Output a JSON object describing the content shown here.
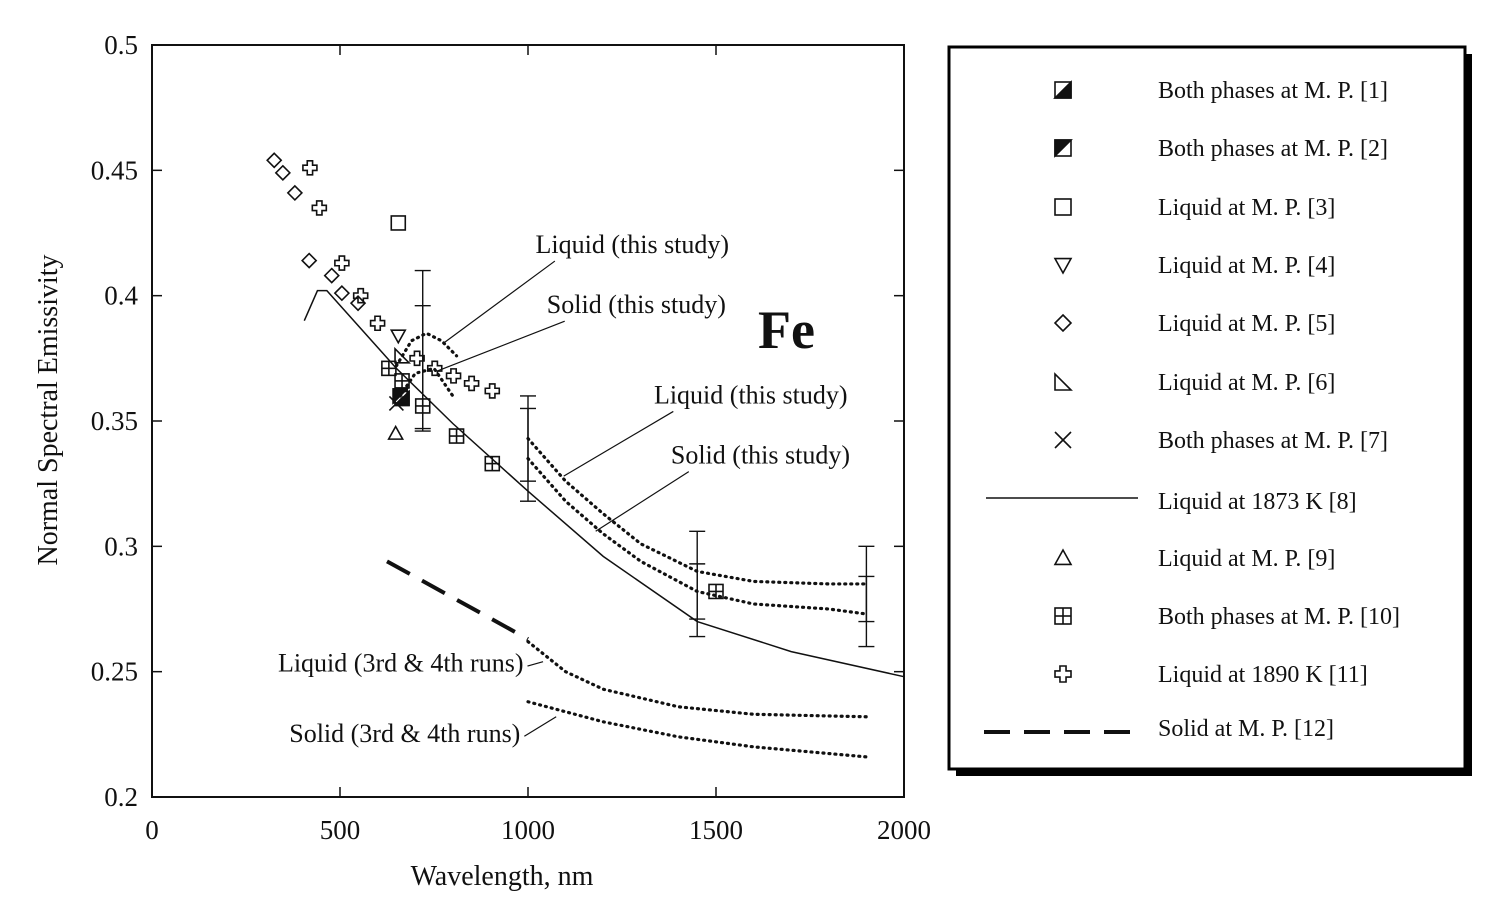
{
  "chart_data": {
    "type": "scatter",
    "element_label": "Fe",
    "xlabel": "Wavelength, nm",
    "ylabel": "Normal Spectral Emissivity",
    "xlim": [
      0,
      2000
    ],
    "ylim": [
      0.2,
      0.5
    ],
    "x_ticks": [
      "0",
      "500",
      "1000",
      "1500",
      "2000"
    ],
    "y_ticks": [
      "0.2",
      "0.25",
      "0.3",
      "0.35",
      "0.4",
      "0.45",
      "0.5"
    ],
    "legend_position": "right",
    "legend": [
      {
        "key": "m1",
        "label": "Both phases at M. P. [1]",
        "symbol": "square-half-a"
      },
      {
        "key": "m2",
        "label": "Both phases at M. P. [2]",
        "symbol": "square-half-b"
      },
      {
        "key": "m3",
        "label": "Liquid at M. P. [3]",
        "symbol": "square"
      },
      {
        "key": "m4",
        "label": "Liquid at M. P. [4]",
        "symbol": "triangle-down"
      },
      {
        "key": "m5",
        "label": "Liquid at M. P. [5]",
        "symbol": "diamond"
      },
      {
        "key": "m6",
        "label": "Liquid at M. P. [6]",
        "symbol": "right-triangle"
      },
      {
        "key": "m7",
        "label": "Both phases at M. P. [7]",
        "symbol": "x"
      },
      {
        "key": "m8",
        "label": "Liquid at 1873 K [8]",
        "symbol": "line-solid"
      },
      {
        "key": "m9",
        "label": "Liquid at M. P. [9]",
        "symbol": "triangle-up"
      },
      {
        "key": "m10",
        "label": "Both phases at M. P. [10]",
        "symbol": "square-plus"
      },
      {
        "key": "m11",
        "label": "Liquid at 1890 K [11]",
        "symbol": "plus-open"
      },
      {
        "key": "m12",
        "label": "Solid at M. P. [12]",
        "symbol": "line-dashed"
      }
    ],
    "annotations": [
      {
        "text": "Liquid (this study)",
        "x": 1020,
        "y": 0.417,
        "anchor": [
          775,
          0.381
        ]
      },
      {
        "text": "Solid (this study)",
        "x": 1050,
        "y": 0.393,
        "anchor": [
          760,
          0.37
        ]
      },
      {
        "text": "Liquid (this study)",
        "x": 1335,
        "y": 0.357,
        "anchor": [
          1095,
          0.328
        ]
      },
      {
        "text": "Solid (this study)",
        "x": 1380,
        "y": 0.333,
        "anchor": [
          1180,
          0.306
        ]
      },
      {
        "text": "Liquid (3rd & 4th runs)",
        "x": 335,
        "y": 0.25,
        "anchor": [
          1040,
          0.254
        ]
      },
      {
        "text": "Solid (3rd & 4th runs)",
        "x": 365,
        "y": 0.222,
        "anchor": [
          1075,
          0.232
        ]
      }
    ],
    "series": [
      {
        "key": "m1",
        "x": [
          665
        ],
        "y": [
          0.359
        ]
      },
      {
        "key": "m2",
        "x": [
          660
        ],
        "y": [
          0.36
        ]
      },
      {
        "key": "m3",
        "x": [
          655
        ],
        "y": [
          0.429
        ]
      },
      {
        "key": "m4",
        "x": [
          655
        ],
        "y": [
          0.384
        ]
      },
      {
        "key": "m5",
        "x": [
          325,
          348,
          380,
          418,
          478,
          505,
          548
        ],
        "y": [
          0.454,
          0.449,
          0.441,
          0.414,
          0.408,
          0.401,
          0.397
        ]
      },
      {
        "key": "m6",
        "x": [
          665
        ],
        "y": [
          0.376
        ]
      },
      {
        "key": "m7",
        "x": [
          650
        ],
        "y": [
          0.357
        ]
      },
      {
        "key": "m8",
        "x": [
          405,
          440,
          465,
          650,
          800,
          1000,
          1200,
          1450,
          1700,
          2000
        ],
        "y": [
          0.39,
          0.402,
          0.402,
          0.371,
          0.349,
          0.322,
          0.296,
          0.27,
          0.258,
          0.248
        ]
      },
      {
        "key": "m9",
        "x": [
          648
        ],
        "y": [
          0.345
        ]
      },
      {
        "key": "m10",
        "x": [
          630,
          665,
          720,
          810,
          905,
          1500
        ],
        "y": [
          0.371,
          0.366,
          0.356,
          0.344,
          0.333,
          0.282
        ]
      },
      {
        "key": "m11",
        "x": [
          420,
          445,
          505,
          555,
          600,
          705,
          752,
          802,
          850,
          905
        ],
        "y": [
          0.451,
          0.435,
          0.413,
          0.4,
          0.389,
          0.375,
          0.371,
          0.368,
          0.365,
          0.362
        ]
      },
      {
        "key": "m12",
        "x": [
          625,
          1000
        ],
        "y": [
          0.294,
          0.263
        ]
      },
      {
        "key": "liquid_this_study_lo",
        "x": [
          650,
          690,
          730,
          770,
          810
        ],
        "y": [
          0.372,
          0.382,
          0.385,
          0.382,
          0.376
        ]
      },
      {
        "key": "solid_this_study_lo",
        "x": [
          660,
          700,
          750,
          800
        ],
        "y": [
          0.36,
          0.369,
          0.371,
          0.36
        ]
      },
      {
        "key": "liquid_this_study_hi",
        "x": [
          1000,
          1100,
          1200,
          1300,
          1450,
          1600,
          1800,
          1900
        ],
        "y": [
          0.343,
          0.326,
          0.313,
          0.301,
          0.29,
          0.286,
          0.285,
          0.285
        ]
      },
      {
        "key": "solid_this_study_hi",
        "x": [
          1000,
          1100,
          1200,
          1300,
          1450,
          1600,
          1800,
          1900
        ],
        "y": [
          0.335,
          0.318,
          0.305,
          0.294,
          0.282,
          0.277,
          0.275,
          0.273
        ]
      },
      {
        "key": "liquid_3rd_4th_runs",
        "x": [
          1000,
          1100,
          1200,
          1400,
          1600,
          1900
        ],
        "y": [
          0.262,
          0.25,
          0.243,
          0.236,
          0.233,
          0.232
        ]
      },
      {
        "key": "solid_3rd_4th_runs",
        "x": [
          1000,
          1200,
          1400,
          1600,
          1900
        ],
        "y": [
          0.238,
          0.23,
          0.224,
          0.22,
          0.216
        ]
      }
    ],
    "error_bars": [
      {
        "x": 720,
        "y": 0.385,
        "lo": 0.346,
        "hi": 0.41
      },
      {
        "x": 720,
        "y": 0.371,
        "lo": 0.347,
        "hi": 0.396
      },
      {
        "x": 1000,
        "y": 0.343,
        "lo": 0.326,
        "hi": 0.36
      },
      {
        "x": 1000,
        "y": 0.335,
        "lo": 0.318,
        "hi": 0.355
      },
      {
        "x": 1450,
        "y": 0.29,
        "lo": 0.271,
        "hi": 0.306
      },
      {
        "x": 1450,
        "y": 0.282,
        "lo": 0.264,
        "hi": 0.293
      },
      {
        "x": 1900,
        "y": 0.285,
        "lo": 0.27,
        "hi": 0.3
      },
      {
        "x": 1900,
        "y": 0.273,
        "lo": 0.26,
        "hi": 0.288
      }
    ]
  }
}
